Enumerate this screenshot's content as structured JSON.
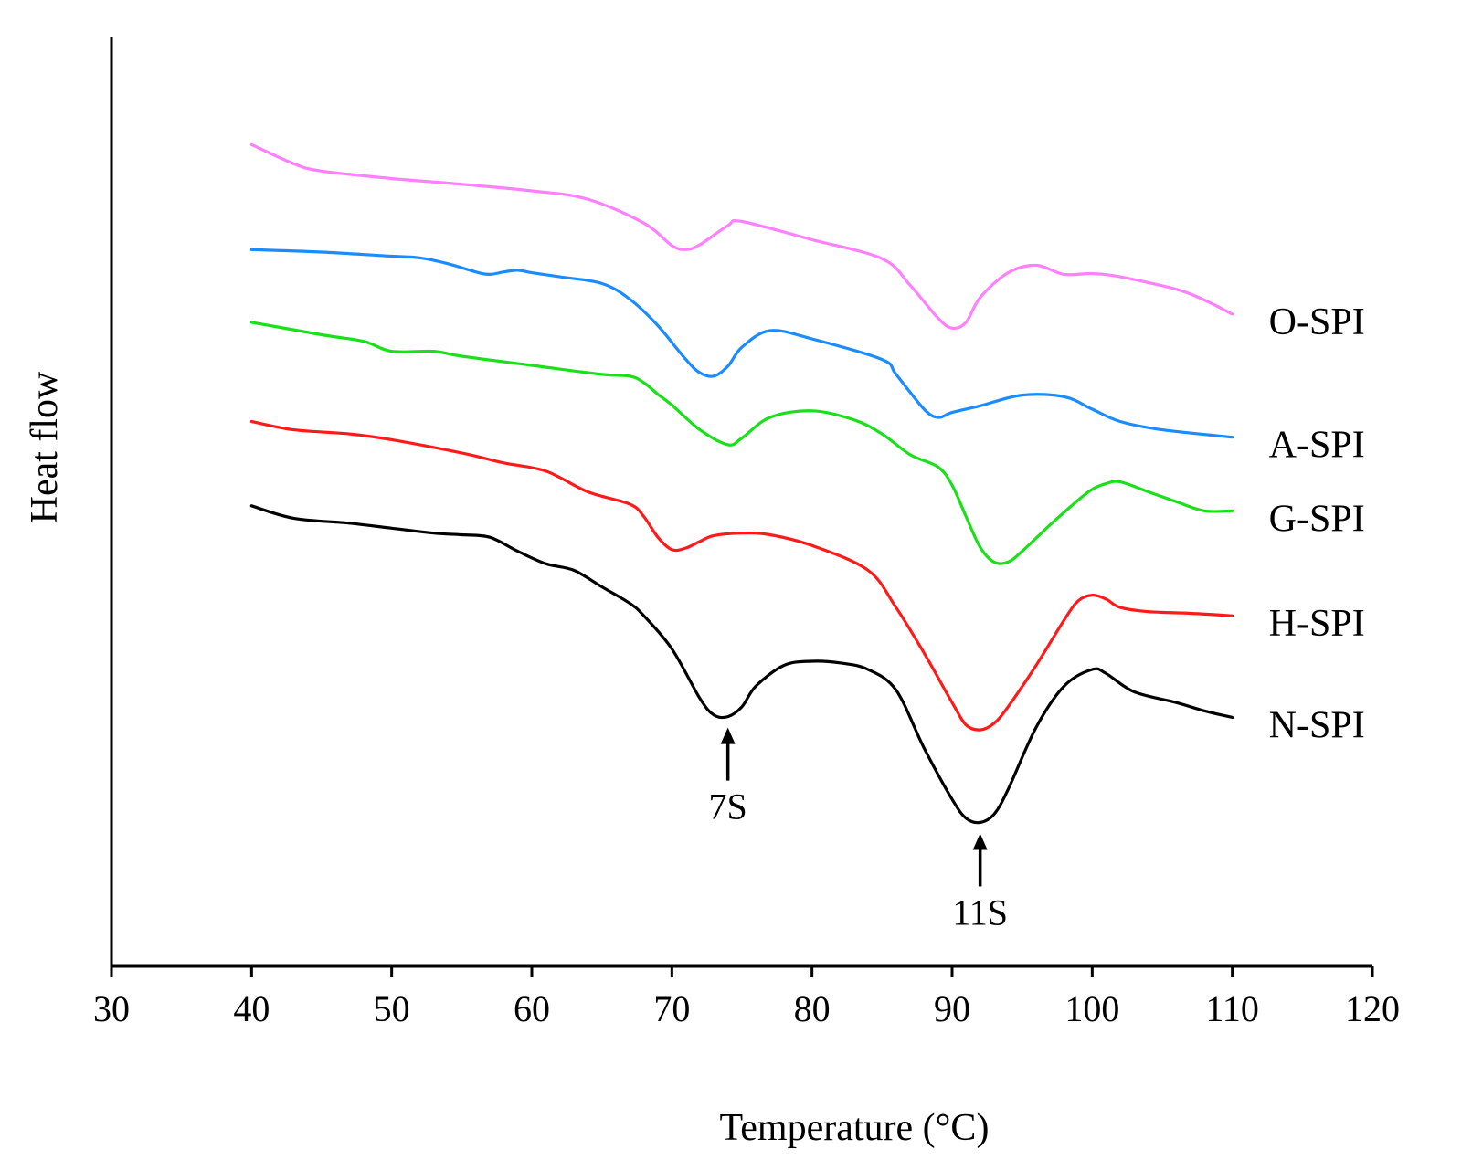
{
  "chart_data": {
    "type": "line",
    "title": "",
    "xlabel": "Temperature  (°C)",
    "ylabel": "Heat flow",
    "xlim": [
      30,
      120
    ],
    "ylim": [
      0,
      10
    ],
    "xticks": [
      30,
      40,
      50,
      60,
      70,
      80,
      90,
      100,
      110,
      120
    ],
    "yticks": [],
    "grid": false,
    "legend": "none (series labeled at right end)",
    "series": [
      {
        "name": "O-SPI",
        "color": "#ff80ff",
        "x": [
          40,
          43,
          45,
          50,
          55,
          60,
          64,
          68,
          70,
          71,
          72,
          74,
          75,
          80,
          85,
          87,
          89,
          90,
          91,
          92,
          94,
          96,
          98,
          100,
          102,
          106,
          108,
          110
        ],
        "y": [
          9.3,
          9.07,
          8.98,
          8.89,
          8.82,
          8.74,
          8.64,
          8.35,
          8.08,
          8.03,
          8.09,
          8.32,
          8.37,
          8.15,
          7.92,
          7.6,
          7.2,
          7.08,
          7.15,
          7.45,
          7.75,
          7.84,
          7.73,
          7.74,
          7.7,
          7.55,
          7.42,
          7.25
        ]
      },
      {
        "name": "A-SPI",
        "color": "#1a8cff",
        "x": [
          40,
          45,
          50,
          52,
          54,
          56,
          57,
          58,
          59,
          60,
          62,
          65,
          67,
          69,
          71,
          72,
          73,
          74,
          75,
          77,
          80,
          85,
          86,
          88,
          89,
          90,
          92,
          95,
          98,
          100,
          102,
          105,
          110
        ],
        "y": [
          8.03,
          8.0,
          7.95,
          7.93,
          7.86,
          7.76,
          7.73,
          7.76,
          7.78,
          7.75,
          7.7,
          7.62,
          7.43,
          7.11,
          6.7,
          6.54,
          6.5,
          6.62,
          6.85,
          7.05,
          6.95,
          6.7,
          6.52,
          6.1,
          6.0,
          6.06,
          6.14,
          6.27,
          6.25,
          6.1,
          5.95,
          5.85,
          5.76
        ]
      },
      {
        "name": "G-SPI",
        "color": "#1ae01a",
        "x": [
          40,
          45,
          48,
          50,
          53,
          55,
          60,
          65,
          67,
          68,
          69,
          70,
          72,
          74,
          75,
          77,
          80,
          83,
          85,
          87,
          89,
          90,
          91,
          92,
          93,
          94,
          95,
          97,
          99,
          100,
          101,
          102,
          104,
          106,
          108,
          110
        ],
        "y": [
          7.15,
          7.0,
          6.92,
          6.8,
          6.8,
          6.74,
          6.63,
          6.52,
          6.5,
          6.42,
          6.28,
          6.15,
          5.85,
          5.67,
          5.75,
          6.0,
          6.08,
          5.97,
          5.8,
          5.55,
          5.4,
          5.18,
          4.8,
          4.43,
          4.25,
          4.25,
          4.38,
          4.7,
          5.0,
          5.13,
          5.2,
          5.22,
          5.1,
          4.98,
          4.87,
          4.87
        ]
      },
      {
        "name": "H-SPI",
        "color": "#ff1a1a",
        "x": [
          40,
          43,
          47,
          50,
          55,
          58,
          61,
          64,
          67,
          68,
          69,
          70,
          71,
          72,
          73,
          75,
          77,
          80,
          84,
          86,
          88,
          90,
          91,
          92,
          93,
          94,
          96,
          98,
          99,
          100,
          101,
          102,
          104,
          107,
          110
        ],
        "y": [
          5.95,
          5.85,
          5.8,
          5.73,
          5.57,
          5.45,
          5.35,
          5.1,
          4.95,
          4.8,
          4.55,
          4.4,
          4.42,
          4.5,
          4.57,
          4.6,
          4.58,
          4.45,
          4.15,
          3.7,
          3.15,
          2.55,
          2.28,
          2.22,
          2.3,
          2.5,
          3.0,
          3.55,
          3.78,
          3.85,
          3.8,
          3.7,
          3.65,
          3.63,
          3.6
        ]
      },
      {
        "name": "N-SPI",
        "color": "#000000",
        "x": [
          40,
          43,
          47,
          50,
          53,
          55,
          57,
          59,
          61,
          63,
          65,
          67,
          68,
          70,
          72,
          73,
          74,
          75,
          76,
          78,
          80,
          82,
          84,
          86,
          88,
          90,
          91,
          92,
          93,
          94,
          96,
          98,
          100,
          101,
          103,
          106,
          108,
          110
        ],
        "y": [
          4.93,
          4.78,
          4.72,
          4.66,
          4.6,
          4.58,
          4.55,
          4.38,
          4.23,
          4.15,
          3.95,
          3.75,
          3.6,
          3.2,
          2.6,
          2.4,
          2.38,
          2.5,
          2.75,
          3.0,
          3.05,
          3.03,
          2.95,
          2.7,
          2.0,
          1.38,
          1.15,
          1.1,
          1.2,
          1.5,
          2.25,
          2.75,
          2.95,
          2.9,
          2.68,
          2.55,
          2.45,
          2.37
        ]
      }
    ],
    "series_labels": [
      "O-SPI",
      "A-SPI",
      "G-SPI",
      "H-SPI",
      "N-SPI"
    ],
    "annotations": [
      {
        "label": "7S",
        "x": 74,
        "y": 2.38
      },
      {
        "label": "11S",
        "x": 92,
        "y": 1.1
      }
    ]
  }
}
